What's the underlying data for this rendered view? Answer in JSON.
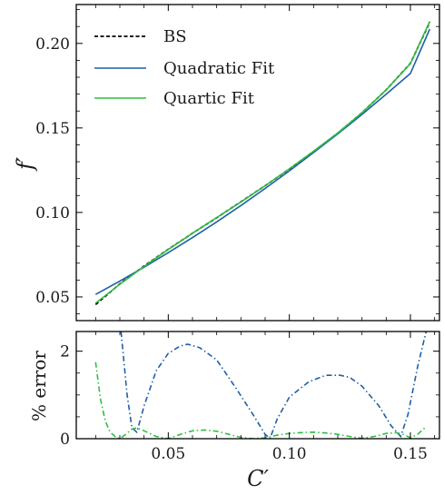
{
  "chart_data": [
    {
      "type": "line",
      "xlim": [
        0.012,
        0.162
      ],
      "ylim": [
        0.036,
        0.223
      ],
      "xticks": [
        0.05,
        0.1,
        0.15
      ],
      "yticks": [
        0.05,
        0.1,
        0.15,
        0.2
      ],
      "ytick_labels": [
        "0.05",
        "0.10",
        "0.15",
        "0.20"
      ],
      "ylabel": "f′",
      "legend": {
        "position": "top-left"
      },
      "series": [
        {
          "name": "BS",
          "color": "#000000",
          "style": "dashed",
          "x": [
            0.02,
            0.03,
            0.04,
            0.05,
            0.06,
            0.07,
            0.08,
            0.09,
            0.1,
            0.11,
            0.12,
            0.13,
            0.14,
            0.15,
            0.158
          ],
          "y": [
            0.0455,
            0.0577,
            0.0683,
            0.0782,
            0.0877,
            0.0969,
            0.1063,
            0.1158,
            0.1257,
            0.1361,
            0.1469,
            0.159,
            0.1725,
            0.1882,
            0.2125
          ]
        },
        {
          "name": "Quadratic Fit",
          "color": "#1f5fa8",
          "style": "solid",
          "x": [
            0.02,
            0.03,
            0.04,
            0.05,
            0.06,
            0.07,
            0.08,
            0.09,
            0.1,
            0.11,
            0.12,
            0.13,
            0.14,
            0.15,
            0.158
          ],
          "y": [
            0.0515,
            0.0594,
            0.0676,
            0.0762,
            0.0851,
            0.0944,
            0.1041,
            0.1142,
            0.1246,
            0.1354,
            0.1465,
            0.158,
            0.1699,
            0.1822,
            0.2085
          ]
        },
        {
          "name": "Quartic Fit",
          "color": "#2fbf3f",
          "style": "solid",
          "x": [
            0.02,
            0.03,
            0.04,
            0.05,
            0.06,
            0.07,
            0.08,
            0.09,
            0.1,
            0.11,
            0.12,
            0.13,
            0.14,
            0.15,
            0.158
          ],
          "y": [
            0.0463,
            0.0575,
            0.068,
            0.0781,
            0.0877,
            0.097,
            0.1062,
            0.1158,
            0.1258,
            0.1362,
            0.147,
            0.159,
            0.1725,
            0.188,
            0.213
          ]
        }
      ]
    },
    {
      "type": "line",
      "xlim": [
        0.012,
        0.162
      ],
      "ylim": [
        0,
        2.45
      ],
      "xticks": [
        0.05,
        0.1,
        0.15
      ],
      "xtick_labels": [
        "0.05",
        "0.10",
        "0.15"
      ],
      "yticks": [
        0,
        2
      ],
      "ytick_labels": [
        "0",
        "2"
      ],
      "xlabel": "C′",
      "ylabel": "% error",
      "series": [
        {
          "color": "#1f5fa8",
          "style": "dashdot",
          "x": [
            0.0305,
            0.033,
            0.035,
            0.037,
            0.04,
            0.045,
            0.05,
            0.055,
            0.058,
            0.063,
            0.07,
            0.078,
            0.085,
            0.09,
            0.092,
            0.095,
            0.1,
            0.108,
            0.115,
            0.121,
            0.125,
            0.13,
            0.137,
            0.142,
            0.146,
            0.149,
            0.153,
            0.1565
          ],
          "y": [
            2.45,
            1.0,
            0.25,
            0.15,
            0.75,
            1.55,
            1.95,
            2.12,
            2.16,
            2.08,
            1.8,
            1.15,
            0.55,
            0.1,
            0.0,
            0.45,
            0.95,
            1.3,
            1.45,
            1.45,
            1.4,
            1.2,
            0.75,
            0.3,
            0.05,
            0.55,
            1.65,
            2.45
          ]
        },
        {
          "color": "#2fbf3f",
          "style": "dashdot",
          "x": [
            0.02,
            0.022,
            0.024,
            0.026,
            0.028,
            0.03,
            0.032,
            0.035,
            0.037,
            0.04,
            0.045,
            0.05,
            0.055,
            0.06,
            0.065,
            0.07,
            0.075,
            0.08,
            0.085,
            0.09,
            0.095,
            0.1,
            0.105,
            0.11,
            0.115,
            0.12,
            0.125,
            0.13,
            0.135,
            0.14,
            0.144,
            0.147,
            0.15,
            0.153,
            0.156
          ],
          "y": [
            1.75,
            0.9,
            0.4,
            0.15,
            0.05,
            0.0,
            0.08,
            0.22,
            0.25,
            0.18,
            0.05,
            0.0,
            0.1,
            0.18,
            0.2,
            0.17,
            0.1,
            0.03,
            0.0,
            0.02,
            0.08,
            0.12,
            0.14,
            0.15,
            0.13,
            0.1,
            0.05,
            0.01,
            0.05,
            0.12,
            0.14,
            0.1,
            0.02,
            0.1,
            0.25
          ]
        }
      ]
    }
  ]
}
